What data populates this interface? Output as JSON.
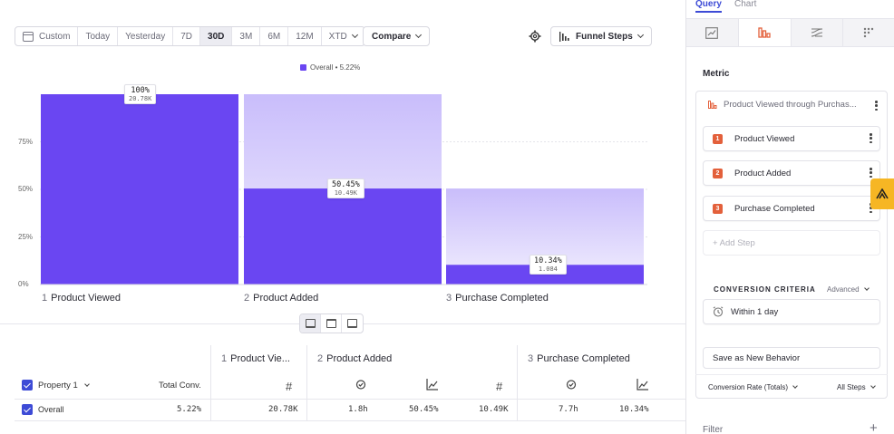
{
  "toolbar": {
    "date_ranges": [
      "Custom",
      "Today",
      "Yesterday",
      "7D",
      "30D",
      "3M",
      "6M",
      "12M",
      "XTD"
    ],
    "active_range": "30D",
    "compare_label": "Compare",
    "chart_type_label": "Funnel Steps",
    "icons": [
      "calendar-icon",
      "gear-icon",
      "bar-chart-icon"
    ]
  },
  "legend": {
    "label": "Overall • 5.22%"
  },
  "chart_data": {
    "type": "bar",
    "categories": [
      "Product Viewed",
      "Product Added",
      "Purchase Completed"
    ],
    "values": [
      100,
      50.45,
      10.34
    ],
    "step_conversion_ceiling": [
      100,
      100,
      50.45
    ],
    "data_labels": [
      "100%",
      "50.45%",
      "10.34%"
    ],
    "counts": [
      "20.78K",
      "10.49K",
      "1.084"
    ],
    "ylim": [
      0,
      100
    ],
    "yticks": [
      {
        "value": 0,
        "label": "0%"
      },
      {
        "value": 25,
        "label": "25%"
      },
      {
        "value": 50,
        "label": "50%"
      },
      {
        "value": 75,
        "label": "75%"
      }
    ],
    "series": [
      {
        "name": "Overall",
        "values": [
          100,
          50.45,
          10.34
        ]
      }
    ],
    "color": "#6a46f2"
  },
  "steps": [
    {
      "num": "1",
      "label": "Product Viewed"
    },
    {
      "num": "2",
      "label": "Product Added"
    },
    {
      "num": "3",
      "label": "Purchase Completed"
    }
  ],
  "table": {
    "property_label": "Property 1",
    "total_conv_label": "Total Conv.",
    "step_headers": [
      {
        "num": "1",
        "label": "Product Vie..."
      },
      {
        "num": "2",
        "label": "Product Added"
      },
      {
        "num": "3",
        "label": "Purchase Completed"
      }
    ],
    "row": {
      "name": "Overall",
      "total_conv": "5.22%",
      "values": [
        "20.78K",
        "1.8h",
        "50.45%",
        "10.49K",
        "7.7h",
        "10.34%"
      ]
    }
  },
  "panel": {
    "tabs": [
      "Query",
      "Chart"
    ],
    "active_tab": "Query",
    "metric_label": "Metric",
    "metric_title": "Product Viewed through Purchas...",
    "steps": [
      "Product Viewed",
      "Product Added",
      "Purchase Completed"
    ],
    "add_step": "+ Add Step",
    "conversion_criteria": "CONVERSION CRITERIA",
    "advanced": "Advanced",
    "within": "Within 1 day",
    "save_behavior": "Save as New Behavior",
    "conversion_rate": "Conversion Rate (Totals)",
    "all_steps": "All Steps",
    "filter": "Filter",
    "filter_add": "+"
  },
  "colors": {
    "accent": "#3d4bd6",
    "bar": "#6a46f2",
    "step_badge": "#e3603b",
    "helper": "#f6b624"
  }
}
